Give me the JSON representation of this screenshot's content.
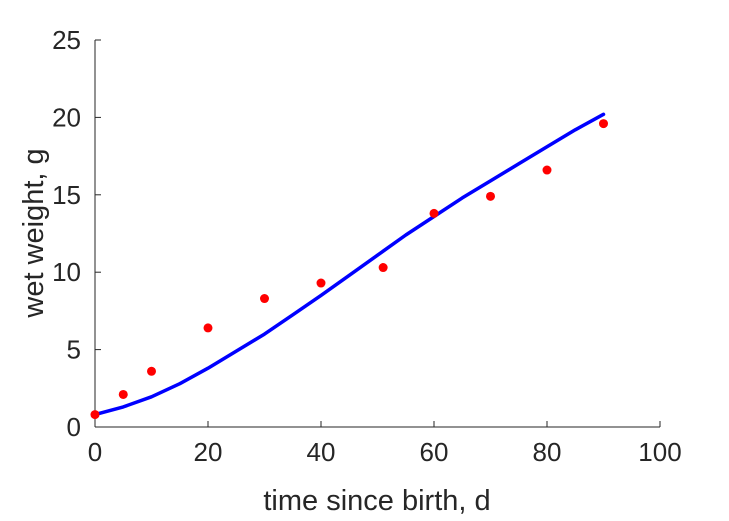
{
  "chart_data": {
    "type": "scatter",
    "xlabel": "time since birth, d",
    "ylabel": "wet weight, g",
    "xlim": [
      0,
      100
    ],
    "ylim": [
      0,
      25
    ],
    "xticks": [
      "0",
      "20",
      "40",
      "60",
      "80",
      "100"
    ],
    "yticks": [
      "0",
      "5",
      "10",
      "15",
      "20",
      "25"
    ],
    "grid": false,
    "series": [
      {
        "kind": "scatter",
        "color": "#ff0000",
        "x": [
          0,
          5,
          10,
          20,
          30,
          40,
          51,
          60,
          70,
          80,
          90
        ],
        "y": [
          0.8,
          2.1,
          3.6,
          6.4,
          8.3,
          9.3,
          10.3,
          13.8,
          14.9,
          16.6,
          19.6
        ]
      },
      {
        "kind": "line",
        "color": "#0000ff",
        "x": [
          0,
          5,
          10,
          15,
          20,
          25,
          30,
          35,
          40,
          45,
          50,
          55,
          60,
          65,
          70,
          75,
          80,
          85,
          90
        ],
        "y": [
          0.8,
          1.3,
          1.95,
          2.8,
          3.8,
          4.9,
          6.0,
          7.25,
          8.5,
          9.8,
          11.1,
          12.4,
          13.6,
          14.8,
          15.9,
          17.0,
          18.1,
          19.2,
          20.2
        ]
      }
    ]
  }
}
